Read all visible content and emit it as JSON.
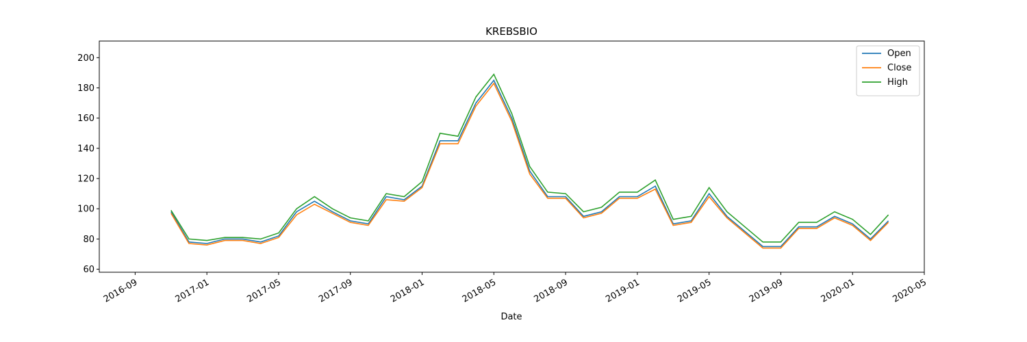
{
  "chart_data": {
    "type": "line",
    "title": "KREBSBIO",
    "xlabel": "Date",
    "x": [
      "2016-11",
      "2016-12",
      "2017-01",
      "2017-02",
      "2017-03",
      "2017-04",
      "2017-05",
      "2017-06",
      "2017-07",
      "2017-08",
      "2017-09",
      "2017-10",
      "2017-11",
      "2017-12",
      "2018-01",
      "2018-02",
      "2018-03",
      "2018-04",
      "2018-05",
      "2018-06",
      "2018-07",
      "2018-08",
      "2018-09",
      "2018-10",
      "2018-11",
      "2018-12",
      "2019-01",
      "2019-02",
      "2019-03",
      "2019-04",
      "2019-05",
      "2019-06",
      "2019-07",
      "2019-08",
      "2019-09",
      "2019-10",
      "2019-11",
      "2019-12",
      "2020-01",
      "2020-02",
      "2020-03"
    ],
    "series": [
      {
        "name": "Open",
        "color": "#1f77b4",
        "values": [
          98,
          78,
          77,
          80,
          80,
          78,
          82,
          98,
          105,
          98,
          92,
          90,
          108,
          106,
          115,
          145,
          145,
          170,
          185,
          160,
          125,
          108,
          108,
          95,
          98,
          108,
          108,
          115,
          90,
          92,
          110,
          95,
          85,
          75,
          75,
          88,
          88,
          95,
          90,
          80,
          92
        ]
      },
      {
        "name": "Close",
        "color": "#ff7f0e",
        "values": [
          97,
          77,
          76,
          79,
          79,
          77,
          81,
          96,
          103,
          97,
          91,
          89,
          106,
          105,
          114,
          143,
          143,
          168,
          183,
          158,
          123,
          107,
          107,
          94,
          97,
          107,
          107,
          113,
          89,
          91,
          108,
          94,
          84,
          74,
          74,
          87,
          87,
          94,
          89,
          79,
          91
        ]
      },
      {
        "name": "High",
        "color": "#2ca02c",
        "values": [
          99,
          80,
          79,
          81,
          81,
          80,
          84,
          100,
          108,
          100,
          94,
          92,
          110,
          108,
          118,
          150,
          148,
          174,
          189,
          163,
          128,
          111,
          110,
          98,
          101,
          111,
          111,
          119,
          93,
          95,
          114,
          98,
          88,
          78,
          78,
          91,
          91,
          98,
          93,
          83,
          96
        ]
      }
    ],
    "xlim": [
      "2016-07",
      "2020-05"
    ],
    "xticks": [
      "2016-09",
      "2017-01",
      "2017-05",
      "2017-09",
      "2018-01",
      "2018-05",
      "2018-09",
      "2019-01",
      "2019-05",
      "2019-09",
      "2020-01",
      "2020-05"
    ],
    "ylim": [
      58,
      211
    ],
    "yticks": [
      60,
      80,
      100,
      120,
      140,
      160,
      180,
      200
    ],
    "legend": "upper right",
    "grid": false
  }
}
